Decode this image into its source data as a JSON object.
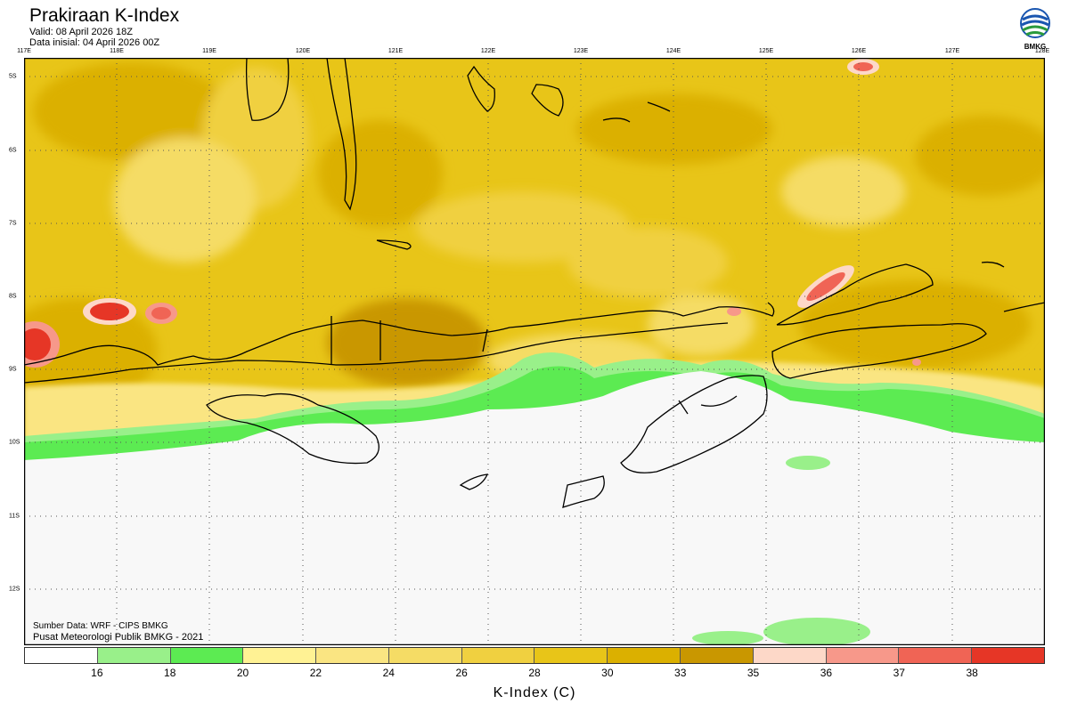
{
  "header": {
    "title": "Prakiraan K-Index",
    "valid": "Valid: 08 April 2026 18Z",
    "initial": "Data inisial: 04 April 2026 00Z",
    "logo_text": "BMKG"
  },
  "axes": {
    "lon_labels": [
      "117E",
      "118E",
      "119E",
      "120E",
      "121E",
      "122E",
      "123E",
      "124E",
      "125E",
      "126E",
      "127E",
      "128E"
    ],
    "lat_labels": [
      "5S",
      "6S",
      "7S",
      "8S",
      "9S",
      "10S",
      "11S",
      "12S"
    ]
  },
  "credits": {
    "source": "Sumber Data: WRF - CIPS BMKG",
    "org": "Pusat Meteorologi Publik BMKG - 2021"
  },
  "colorbar": {
    "title": "K-Index (C)",
    "ticks": [
      "16",
      "18",
      "20",
      "22",
      "24",
      "26",
      "28",
      "30",
      "33",
      "35",
      "36",
      "37",
      "38"
    ],
    "colors": [
      "#ffffff",
      "#99f08a",
      "#5ceb52",
      "#fff294",
      "#fae582",
      "#f5dc65",
      "#f0d040",
      "#e8c518",
      "#dbb000",
      "#c99700",
      "#fdd8c8",
      "#f7988a",
      "#f06455",
      "#e63626"
    ]
  },
  "legend_colors": {
    "ocean_south": "#f8f8f8",
    "land_outline": "#000000"
  }
}
